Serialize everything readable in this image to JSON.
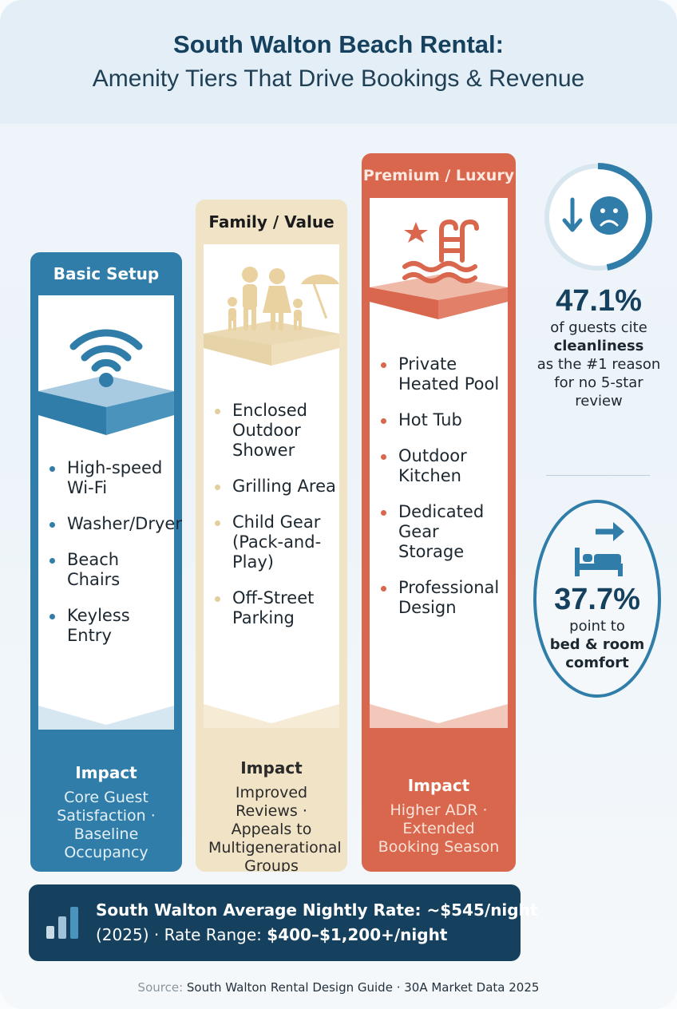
{
  "header": {
    "title": "South Walton Beach Rental:",
    "subtitle": "Amenity Tiers That Drive Bookings & Revenue"
  },
  "tiers": [
    {
      "name": "Basic Setup",
      "icon": "wifi-icon",
      "color": "#2f7da8",
      "items": [
        "High-speed Wi-Fi",
        "Washer/Dryer",
        "Beach Chairs",
        "Keyless Entry"
      ],
      "impact_heading": "Impact",
      "impact_text": "Core Guest Satisfaction · Baseline Occupancy"
    },
    {
      "name": "Family / Value",
      "icon": "family-beach-icon",
      "color": "#f0e3c6",
      "items": [
        "Enclosed Outdoor Shower",
        "Grilling Area",
        "Child Gear (Pack-and-Play)",
        "Off-Street Parking"
      ],
      "impact_heading": "Impact",
      "impact_text": "Improved Reviews · Appeals to Multigenerational Groups"
    },
    {
      "name": "Premium / Luxury",
      "icon": "pool-icon",
      "color": "#d9674d",
      "items": [
        "Private Heated Pool",
        "Hot Tub",
        "Outdoor Kitchen",
        "Dedicated Gear Storage",
        "Professional Design"
      ],
      "impact_heading": "Impact",
      "impact_text": "Higher ADR · Extended Booking Season"
    }
  ],
  "stats": [
    {
      "icon": "sad-face-down-arrow-icon",
      "value": "47.1%",
      "text_pre": "of guests cite",
      "text_bold": "cleanliness",
      "text_post": "as the #1 reason for no 5-star review",
      "ring_fraction": 0.471
    },
    {
      "icon": "bed-arrow-icon",
      "value": "37.7%",
      "text_pre": "point to",
      "text_bold": "bed & room comfort"
    }
  ],
  "rate_bar": {
    "icon": "bar-chart-icon",
    "line1": "South Walton Average Nightly Rate: ~$545/night",
    "line2_pre": "(2025) ·  Rate Range: ",
    "line2_bold": "$400–$1,200+/night"
  },
  "source": {
    "label": "Source:",
    "text": "South Walton Rental Design Guide · 30A Market Data 2025"
  }
}
